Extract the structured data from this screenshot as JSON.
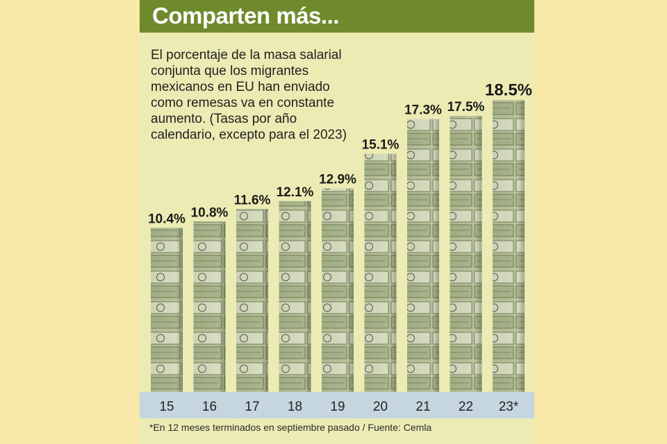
{
  "header": {
    "title": "Comparten más..."
  },
  "description": "El porcentaje de la masa salarial conjunta que los migrantes mexicanos en EU han enviado como remesas va en constante aumento. (Tasas por año calendario, excepto para el 2023)",
  "footnote": "*En 12 meses terminados en septiembre pasado / Fuente: Cemla",
  "colors": {
    "title_bar": "#6f8a2b",
    "panel": "#ecebb4",
    "page": "#f9e9a8",
    "axis_band": "#c5d6df",
    "bar_fill": "#b9c29a"
  },
  "chart_data": {
    "type": "bar",
    "categories": [
      "15",
      "16",
      "17",
      "18",
      "19",
      "20",
      "21",
      "22",
      "23*"
    ],
    "values": [
      10.4,
      10.8,
      11.6,
      12.1,
      12.9,
      15.1,
      17.3,
      17.5,
      18.5
    ],
    "data_labels": [
      "10.4%",
      "10.8%",
      "11.6%",
      "12.1%",
      "12.9%",
      "15.1%",
      "17.3%",
      "17.5%",
      "18.5%"
    ],
    "title": "Comparten más...",
    "xlabel": "",
    "ylabel": "",
    "grid": false,
    "bar_fill": "photo of stacked US dollar bills"
  }
}
